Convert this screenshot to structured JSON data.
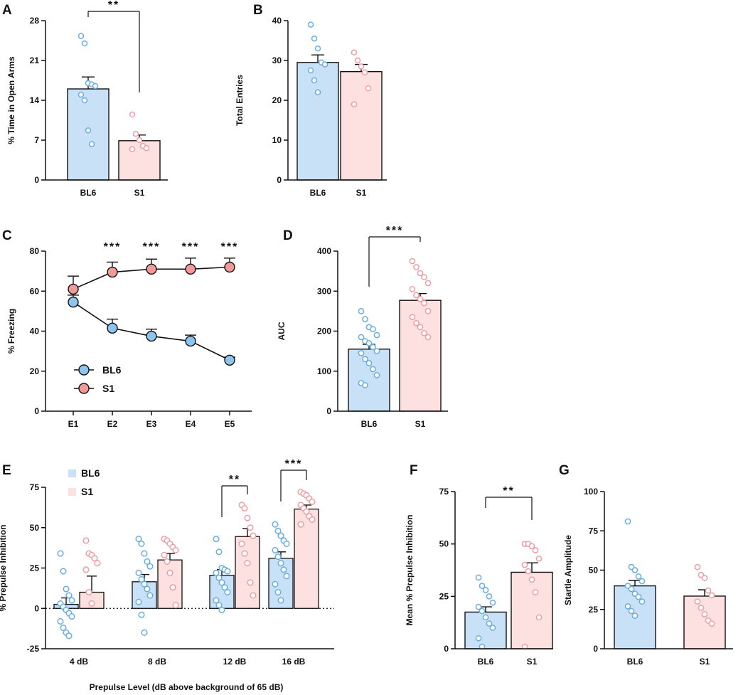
{
  "colors": {
    "bl6_fill": "#c9e1f7",
    "bl6_point": "#6aaee0",
    "s1_fill": "#fde0e0",
    "s1_point": "#ec9ea4",
    "bl6_marker": "#8ec5ee",
    "s1_marker": "#f29a9a",
    "axis": "#111111"
  },
  "chart_data": [
    {
      "id": "A",
      "letter": "A",
      "type": "bar",
      "categories": [
        "BL6",
        "S1"
      ],
      "values": [
        16.0,
        6.9
      ],
      "errors": [
        2.1,
        1.0
      ],
      "points": [
        [
          25.3,
          24.0,
          17.0,
          16.8,
          16.5,
          15.0,
          14.0,
          8.7,
          6.3
        ],
        [
          11.5,
          8.1,
          7.0,
          6.0,
          5.6,
          5.4
        ]
      ],
      "ylabel": "% Time in Open Arms",
      "yticks": [
        0,
        7,
        14,
        21,
        28
      ],
      "ylim": [
        0,
        28
      ],
      "significance": [
        {
          "from": 0,
          "to": 1,
          "label": "**"
        }
      ]
    },
    {
      "id": "B",
      "letter": "B",
      "type": "bar",
      "categories": [
        "BL6",
        "S1"
      ],
      "values": [
        29.5,
        27.2
      ],
      "errors": [
        1.9,
        1.8
      ],
      "points": [
        [
          39.0,
          35.5,
          33.0,
          29.5,
          29.0,
          27.5,
          25.0,
          22.0
        ],
        [
          32.0,
          30.0,
          28.5,
          27.0,
          23.0,
          19.0
        ]
      ],
      "ylabel": "Total Entries",
      "yticks": [
        0,
        10,
        20,
        30,
        40
      ],
      "ylim": [
        0,
        40
      ],
      "significance": []
    },
    {
      "id": "C",
      "letter": "C",
      "type": "line",
      "x": [
        "E1",
        "E2",
        "E3",
        "E4",
        "E5"
      ],
      "series": [
        {
          "name": "BL6",
          "values": [
            54.5,
            41.5,
            37.5,
            35.0,
            25.5
          ],
          "errors": [
            3.5,
            4.5,
            3.5,
            3.0,
            1.5
          ]
        },
        {
          "name": "S1",
          "values": [
            61.0,
            69.5,
            71.0,
            71.0,
            72.0
          ],
          "errors": [
            6.5,
            5.0,
            5.0,
            5.5,
            4.5
          ]
        }
      ],
      "ylabel": "% Freezing",
      "yticks": [
        0,
        20,
        40,
        60,
        80
      ],
      "ylim": [
        0,
        80
      ],
      "significance_labels": [
        "",
        "***",
        "***",
        "***",
        "***"
      ]
    },
    {
      "id": "D",
      "letter": "D",
      "type": "bar",
      "categories": [
        "BL6",
        "S1"
      ],
      "values": [
        155,
        277
      ],
      "errors": [
        12,
        17
      ],
      "points": [
        [
          250,
          230,
          210,
          205,
          190,
          185,
          175,
          170,
          160,
          150,
          145,
          130,
          120,
          105,
          90,
          70,
          65
        ],
        [
          375,
          360,
          345,
          335,
          320,
          305,
          290,
          280,
          270,
          250,
          235,
          220,
          210,
          195,
          185
        ]
      ],
      "ylabel": "AUC",
      "yticks": [
        0,
        100,
        200,
        300,
        400
      ],
      "ylim": [
        0,
        400
      ],
      "significance": [
        {
          "from": 0,
          "to": 1,
          "label": "***"
        }
      ]
    },
    {
      "id": "E",
      "letter": "E",
      "type": "grouped_bar",
      "categories": [
        "4 dB",
        "8 dB",
        "12 dB",
        "16 dB"
      ],
      "series": [
        {
          "name": "BL6",
          "values": [
            2.5,
            16.5,
            20.5,
            31.0
          ],
          "errors": [
            4.0,
            4.5,
            3.5,
            4.0
          ],
          "points": [
            [
              34,
              23,
              12,
              8,
              5,
              3,
              1,
              -1,
              -3,
              -5,
              -8,
              -12,
              -15,
              -17
            ],
            [
              43,
              40,
              34,
              29,
              26,
              22,
              18,
              15,
              12,
              8,
              4,
              -4,
              -15
            ],
            [
              43,
              35,
              25,
              24,
              23,
              22,
              19,
              16,
              13,
              10,
              5,
              2,
              -1
            ],
            [
              52,
              48,
              45,
              42,
              40,
              36,
              32,
              28,
              24,
              20,
              15,
              10,
              5
            ]
          ]
        },
        {
          "name": "S1",
          "values": [
            10.0,
            30.0,
            44.5,
            61.5
          ],
          "errors": [
            10.0,
            4.0,
            5.0,
            2.5
          ],
          "points": [
            [
              42,
              34,
              33,
              31,
              28,
              24,
              10,
              3
            ],
            [
              43,
              42,
              40,
              38,
              36,
              33,
              29,
              22,
              13,
              2
            ],
            [
              64,
              62,
              56,
              50,
              45,
              40,
              34,
              28,
              16,
              8
            ],
            [
              72,
              71,
              70,
              68,
              66,
              64,
              62,
              60,
              57,
              55,
              52
            ]
          ]
        }
      ],
      "xlabel": "Prepulse Level (dB above background of 65 dB)",
      "ylabel": "% Prepulse Inhibition",
      "yticks": [
        -25,
        0,
        25,
        50,
        75
      ],
      "ylim": [
        -25,
        75
      ],
      "significance": [
        {
          "category": 2,
          "label": "**"
        },
        {
          "category": 3,
          "label": "***"
        }
      ],
      "legend": [
        "BL6",
        "S1"
      ]
    },
    {
      "id": "F",
      "letter": "F",
      "type": "bar",
      "categories": [
        "BL6",
        "S1"
      ],
      "values": [
        17.5,
        36.5
      ],
      "errors": [
        2.5,
        4.5
      ],
      "points": [
        [
          34,
          30,
          28,
          25,
          22,
          20,
          18,
          15,
          12,
          10,
          5,
          1
        ],
        [
          50,
          50,
          49,
          47,
          43,
          40,
          37,
          33,
          27,
          15,
          1
        ]
      ],
      "ylabel": "Mean % Prepulse Inhibition",
      "yticks": [
        0,
        25,
        50,
        75
      ],
      "ylim": [
        0,
        75
      ],
      "significance": [
        {
          "from": 0,
          "to": 1,
          "label": "**"
        }
      ]
    },
    {
      "id": "G",
      "letter": "G",
      "type": "bar",
      "categories": [
        "BL6",
        "S1"
      ],
      "values": [
        40.0,
        33.5
      ],
      "errors": [
        3.5,
        4.0
      ],
      "points": [
        [
          81,
          52,
          50,
          46,
          43,
          40,
          38,
          35,
          33,
          30,
          27,
          24,
          21
        ],
        [
          52,
          47,
          45,
          37,
          34,
          30,
          26,
          22,
          18,
          16
        ]
      ],
      "ylabel": "Startle Amplitude",
      "yticks": [
        0,
        25,
        50,
        75,
        100
      ],
      "ylim": [
        0,
        100
      ],
      "significance": []
    }
  ]
}
